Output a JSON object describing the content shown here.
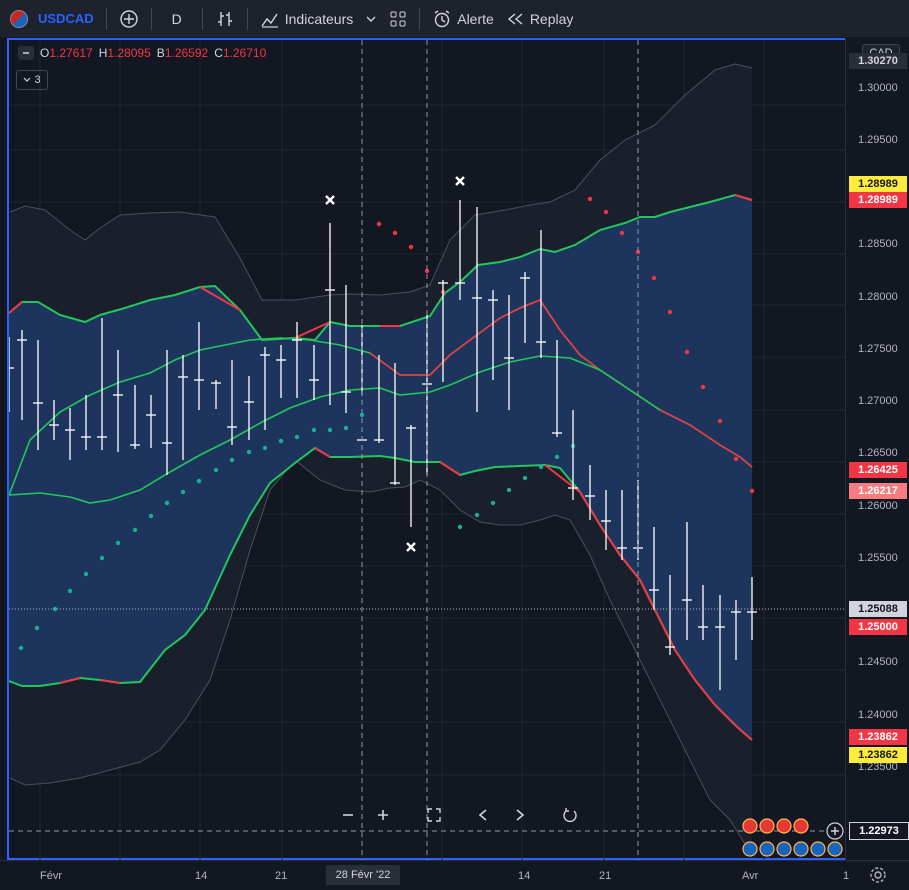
{
  "toolbar": {
    "symbol": "USDCAD",
    "interval": "D",
    "indicators_label": "Indicateurs",
    "alert_label": "Alerte",
    "replay_label": "Replay"
  },
  "legend": {
    "open_label": "O",
    "open": "1.27617",
    "high_label": "H",
    "high": "1.28095",
    "low_label": "B",
    "low": "1.26592",
    "close_label": "C",
    "close": "1.26710",
    "indicator_count": "3"
  },
  "price_axis": {
    "currency": "CAD",
    "top_value": "1.30270",
    "labels": [
      "1.30000",
      "1.29500",
      "1.28500",
      "1.28000",
      "1.27500",
      "1.27000",
      "1.26500",
      "1.26000",
      "1.25500",
      "1.24500",
      "1.24000",
      "1.23500"
    ],
    "tags": [
      {
        "value": "1.28989",
        "bg": "#ffeb3b",
        "fg": "#131722"
      },
      {
        "value": "1.28989",
        "bg": "#f23645",
        "fg": "#ffffff"
      },
      {
        "value": "1.26425",
        "bg": "#f23645",
        "fg": "#ffffff"
      },
      {
        "value": "1.26217",
        "bg": "#f77c80",
        "fg": "#ffffff"
      },
      {
        "value": "1.25088",
        "bg": "#d1d4dc",
        "fg": "#131722"
      },
      {
        "value": "1.25000",
        "bg": "#f23645",
        "fg": "#ffffff"
      },
      {
        "value": "1.23862",
        "bg": "#f23645",
        "fg": "#ffffff"
      },
      {
        "value": "1.23862",
        "bg": "#ffeb3b",
        "fg": "#131722"
      }
    ],
    "cursor_value": "1.22973"
  },
  "time_axis": {
    "labels": [
      "Févr",
      "14",
      "21",
      "14",
      "21",
      "Avr",
      "1"
    ],
    "cursor_label": "28 Févr '22"
  },
  "colors": {
    "accent": "#2962ff",
    "up": "#22ab94",
    "down": "#f23645",
    "band_fill": "#1e3a66"
  }
}
